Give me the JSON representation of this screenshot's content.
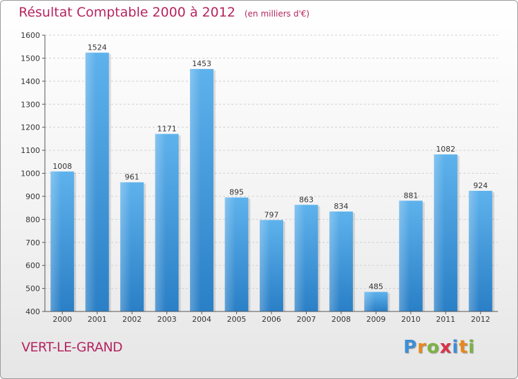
{
  "chart_data": {
    "type": "bar",
    "title": "Résultat Comptable 2000 à 2012",
    "subtitle": "(en milliers d'€)",
    "categories": [
      "2000",
      "2001",
      "2002",
      "2003",
      "2004",
      "2005",
      "2006",
      "2007",
      "2008",
      "2009",
      "2010",
      "2011",
      "2012"
    ],
    "values": [
      1008,
      1524,
      961,
      1171,
      1453,
      895,
      797,
      863,
      834,
      485,
      881,
      1082,
      924
    ],
    "ylim": [
      400,
      1600
    ],
    "yticks": [
      400,
      500,
      600,
      700,
      800,
      900,
      1000,
      1100,
      1200,
      1300,
      1400,
      1500,
      1600
    ],
    "xlabel": "",
    "ylabel": "",
    "grid": true,
    "bar_color": "#3a95d8"
  },
  "footer": {
    "commune": "VERT-LE-GRAND"
  },
  "logo": {
    "letters": [
      "P",
      "r",
      "o",
      "x",
      "i",
      "t",
      "i"
    ],
    "colors": [
      "#3d8fd6",
      "#e6891f",
      "#7cb342",
      "#d8334a",
      "#3d8fd6",
      "#e6891f",
      "#7cb342"
    ]
  }
}
